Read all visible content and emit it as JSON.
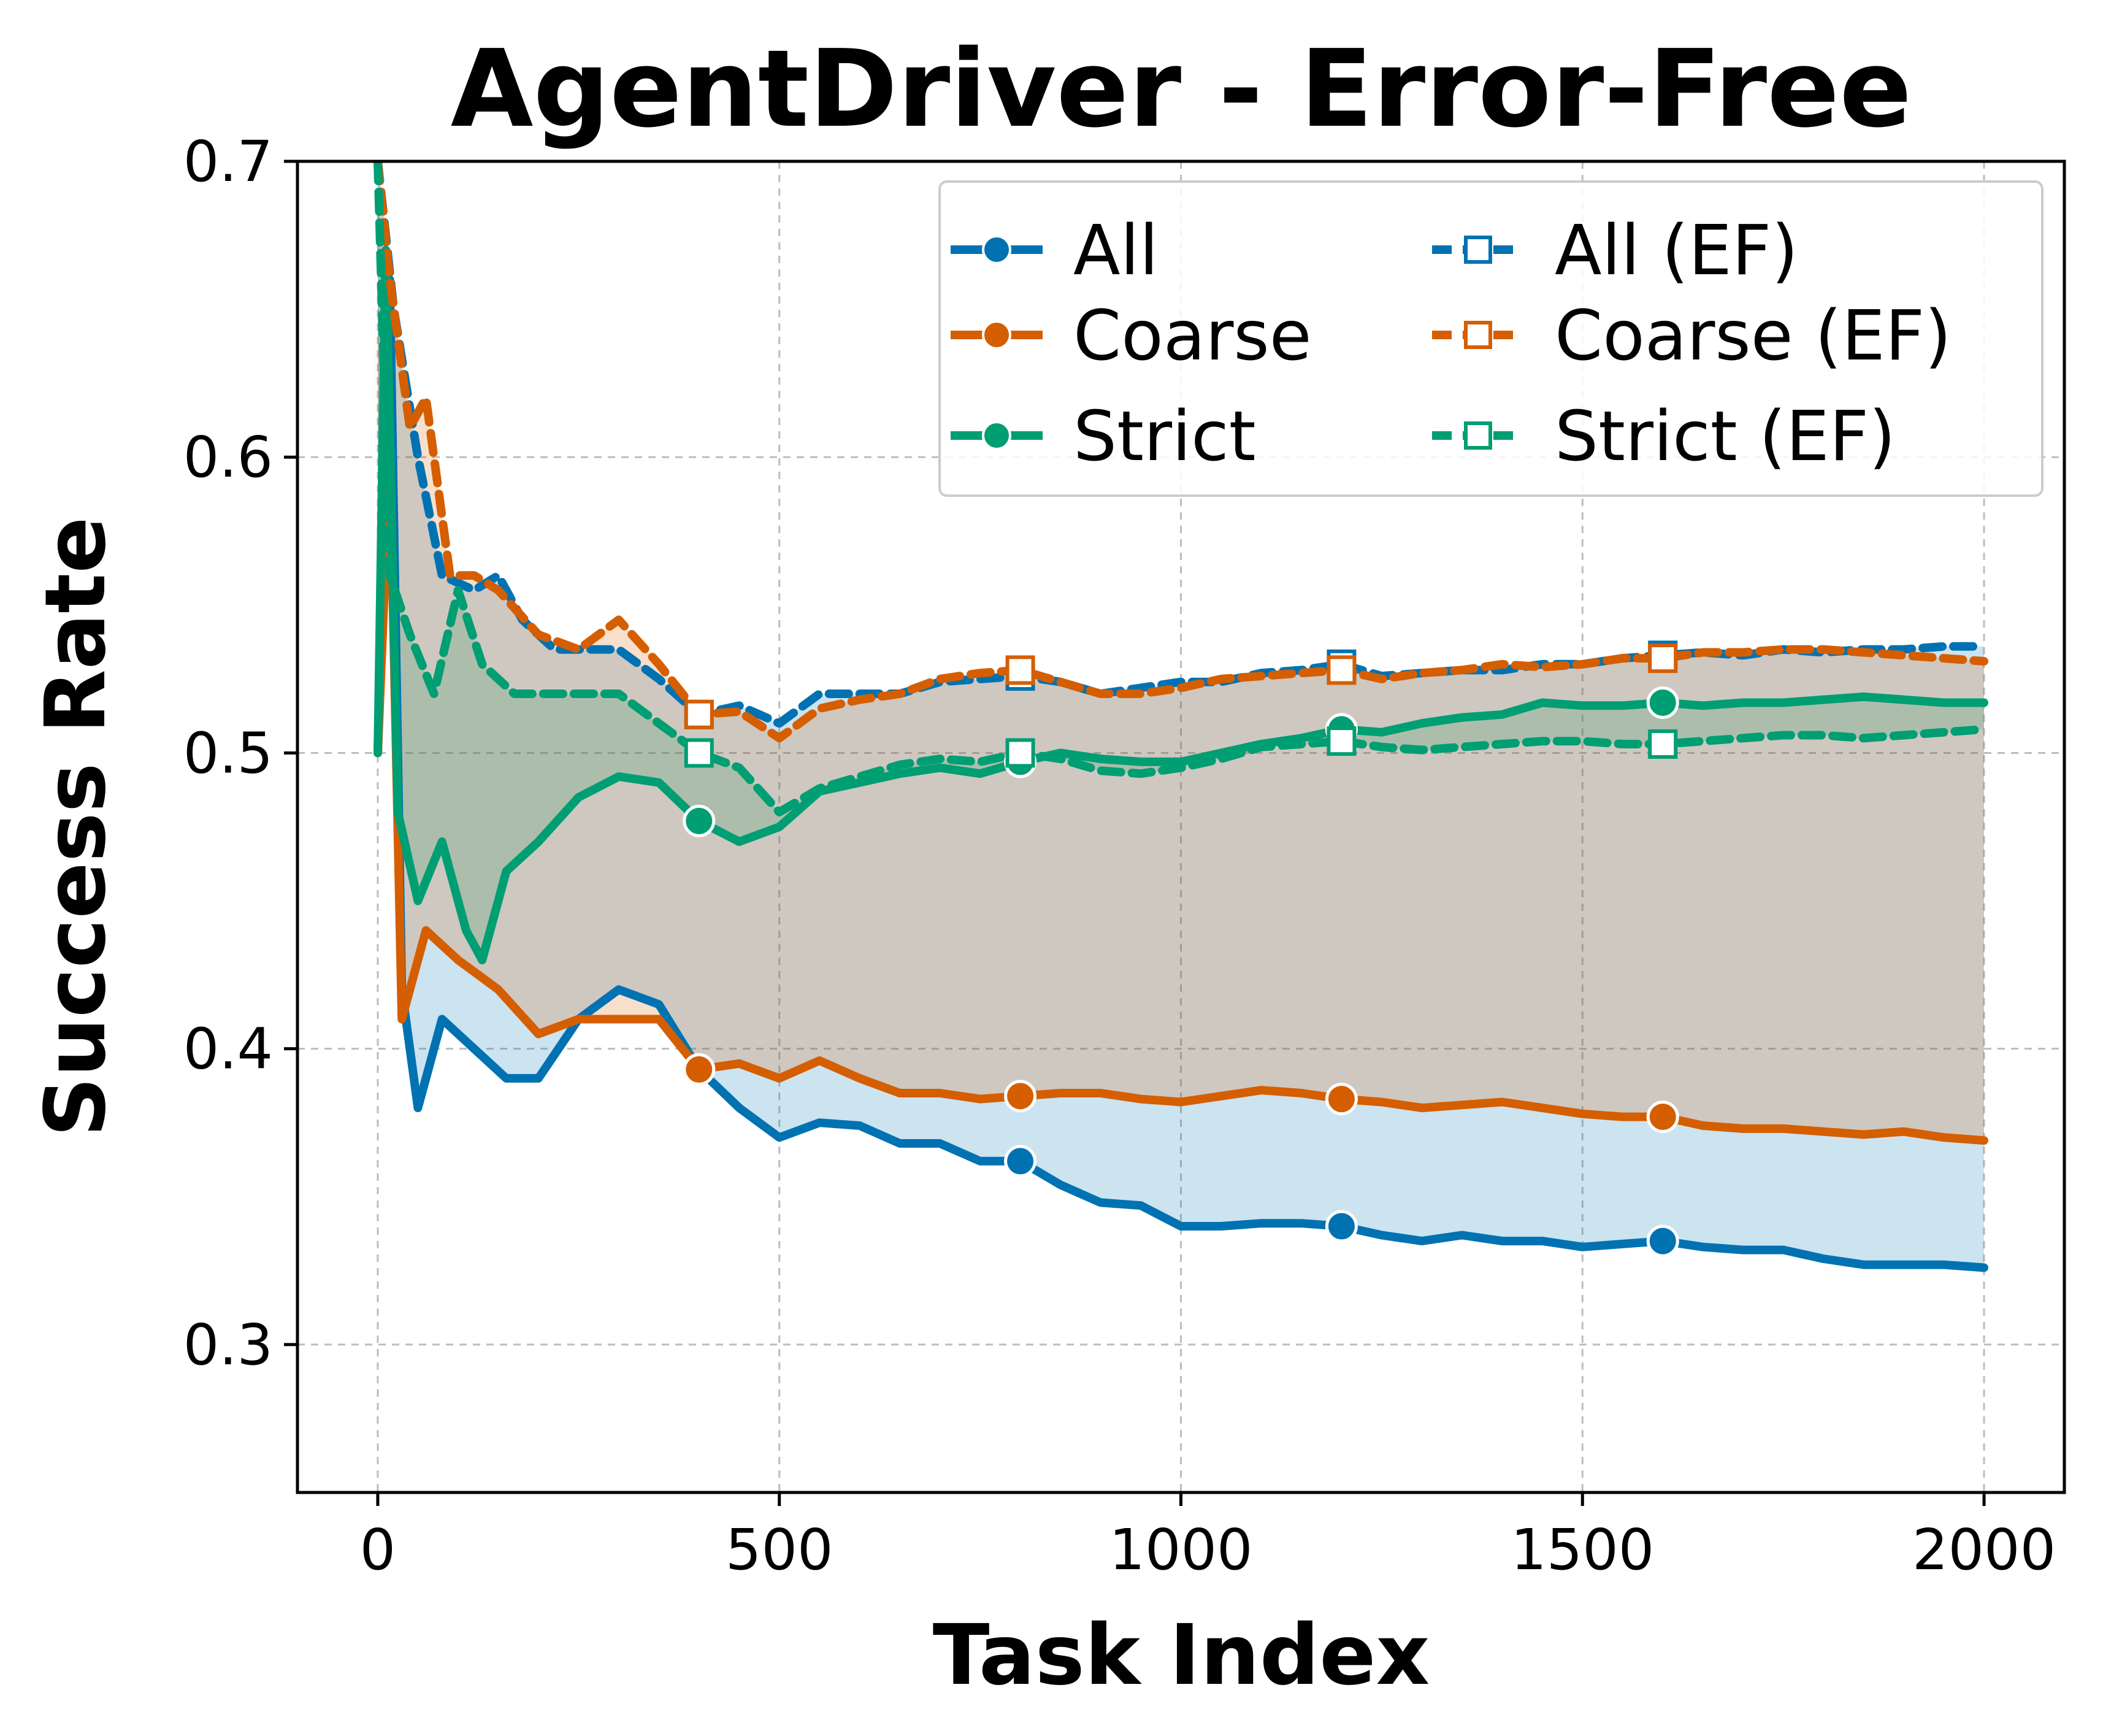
{
  "chart_data": {
    "type": "line",
    "title": "AgentDriver - Error-Free",
    "xlabel": "Task Index",
    "ylabel": "Success Rate",
    "xlim": [
      -100,
      2100
    ],
    "ylim": [
      0.25,
      0.7
    ],
    "xticks": [
      0,
      500,
      1000,
      1500,
      2000
    ],
    "yticks": [
      0.3,
      0.4,
      0.5,
      0.6,
      0.7
    ],
    "xtick_labels": [
      "0",
      "500",
      "1000",
      "1500",
      "2000"
    ],
    "ytick_labels": [
      "0.3",
      "0.4",
      "0.5",
      "0.6",
      "0.7"
    ],
    "grid": true,
    "legend": {
      "placement": "top-right",
      "columns": 2
    },
    "colors": {
      "All": "#0072b2",
      "Coarse": "#d55e00",
      "Strict": "#009e73"
    },
    "series": [
      {
        "name": "All",
        "group": "All",
        "style": "solid",
        "marker": "circle",
        "points": [
          [
            0,
            0.5
          ],
          [
            15,
            0.66
          ],
          [
            30,
            0.42
          ],
          [
            50,
            0.38
          ],
          [
            80,
            0.41
          ],
          [
            120,
            0.4
          ],
          [
            160,
            0.39
          ],
          [
            200,
            0.39
          ],
          [
            250,
            0.41
          ],
          [
            300,
            0.42
          ],
          [
            350,
            0.415
          ],
          [
            400,
            0.393
          ],
          [
            450,
            0.38
          ],
          [
            500,
            0.37
          ],
          [
            550,
            0.375
          ],
          [
            600,
            0.374
          ],
          [
            650,
            0.368
          ],
          [
            700,
            0.368
          ],
          [
            750,
            0.362
          ],
          [
            800,
            0.362
          ],
          [
            850,
            0.354
          ],
          [
            900,
            0.348
          ],
          [
            950,
            0.347
          ],
          [
            1000,
            0.34
          ],
          [
            1050,
            0.34
          ],
          [
            1100,
            0.341
          ],
          [
            1150,
            0.341
          ],
          [
            1200,
            0.34
          ],
          [
            1250,
            0.337
          ],
          [
            1300,
            0.335
          ],
          [
            1350,
            0.337
          ],
          [
            1400,
            0.335
          ],
          [
            1450,
            0.335
          ],
          [
            1500,
            0.333
          ],
          [
            1550,
            0.334
          ],
          [
            1600,
            0.335
          ],
          [
            1650,
            0.333
          ],
          [
            1700,
            0.332
          ],
          [
            1750,
            0.332
          ],
          [
            1800,
            0.329
          ],
          [
            1850,
            0.327
          ],
          [
            1900,
            0.327
          ],
          [
            1950,
            0.327
          ],
          [
            2000,
            0.326
          ]
        ]
      },
      {
        "name": "Coarse",
        "group": "Coarse",
        "style": "solid",
        "marker": "circle",
        "points": [
          [
            0,
            0.5
          ],
          [
            15,
            0.6
          ],
          [
            30,
            0.41
          ],
          [
            60,
            0.44
          ],
          [
            100,
            0.43
          ],
          [
            150,
            0.42
          ],
          [
            200,
            0.405
          ],
          [
            250,
            0.41
          ],
          [
            300,
            0.41
          ],
          [
            350,
            0.41
          ],
          [
            400,
            0.393
          ],
          [
            450,
            0.395
          ],
          [
            500,
            0.39
          ],
          [
            550,
            0.396
          ],
          [
            600,
            0.39
          ],
          [
            650,
            0.385
          ],
          [
            700,
            0.385
          ],
          [
            750,
            0.383
          ],
          [
            800,
            0.384
          ],
          [
            850,
            0.385
          ],
          [
            900,
            0.385
          ],
          [
            950,
            0.383
          ],
          [
            1000,
            0.382
          ],
          [
            1050,
            0.384
          ],
          [
            1100,
            0.386
          ],
          [
            1150,
            0.385
          ],
          [
            1200,
            0.383
          ],
          [
            1250,
            0.382
          ],
          [
            1300,
            0.38
          ],
          [
            1350,
            0.381
          ],
          [
            1400,
            0.382
          ],
          [
            1450,
            0.38
          ],
          [
            1500,
            0.378
          ],
          [
            1550,
            0.377
          ],
          [
            1600,
            0.377
          ],
          [
            1650,
            0.374
          ],
          [
            1700,
            0.373
          ],
          [
            1750,
            0.373
          ],
          [
            1800,
            0.372
          ],
          [
            1850,
            0.371
          ],
          [
            1900,
            0.372
          ],
          [
            1950,
            0.37
          ],
          [
            2000,
            0.369
          ]
        ]
      },
      {
        "name": "Strict",
        "group": "Strict",
        "style": "solid",
        "marker": "circle",
        "points": [
          [
            0,
            0.5
          ],
          [
            10,
            0.67
          ],
          [
            25,
            0.48
          ],
          [
            50,
            0.45
          ],
          [
            80,
            0.47
          ],
          [
            110,
            0.44
          ],
          [
            130,
            0.43
          ],
          [
            160,
            0.46
          ],
          [
            200,
            0.47
          ],
          [
            250,
            0.485
          ],
          [
            300,
            0.492
          ],
          [
            350,
            0.49
          ],
          [
            400,
            0.477
          ],
          [
            450,
            0.47
          ],
          [
            500,
            0.475
          ],
          [
            550,
            0.487
          ],
          [
            600,
            0.49
          ],
          [
            650,
            0.493
          ],
          [
            700,
            0.495
          ],
          [
            750,
            0.493
          ],
          [
            800,
            0.497
          ],
          [
            850,
            0.5
          ],
          [
            900,
            0.498
          ],
          [
            950,
            0.497
          ],
          [
            1000,
            0.497
          ],
          [
            1050,
            0.5
          ],
          [
            1100,
            0.503
          ],
          [
            1150,
            0.505
          ],
          [
            1200,
            0.508
          ],
          [
            1250,
            0.507
          ],
          [
            1300,
            0.51
          ],
          [
            1350,
            0.512
          ],
          [
            1400,
            0.513
          ],
          [
            1450,
            0.517
          ],
          [
            1500,
            0.516
          ],
          [
            1550,
            0.516
          ],
          [
            1600,
            0.517
          ],
          [
            1650,
            0.516
          ],
          [
            1700,
            0.517
          ],
          [
            1750,
            0.517
          ],
          [
            1800,
            0.518
          ],
          [
            1850,
            0.519
          ],
          [
            1900,
            0.518
          ],
          [
            1950,
            0.517
          ],
          [
            2000,
            0.517
          ]
        ]
      },
      {
        "name": "All (EF)",
        "group": "All",
        "style": "dashed",
        "marker": "square",
        "points": [
          [
            0,
            0.7
          ],
          [
            20,
            0.65
          ],
          [
            50,
            0.6
          ],
          [
            80,
            0.56
          ],
          [
            120,
            0.555
          ],
          [
            150,
            0.56
          ],
          [
            180,
            0.545
          ],
          [
            220,
            0.535
          ],
          [
            260,
            0.535
          ],
          [
            300,
            0.535
          ],
          [
            350,
            0.525
          ],
          [
            400,
            0.513
          ],
          [
            450,
            0.516
          ],
          [
            500,
            0.51
          ],
          [
            550,
            0.52
          ],
          [
            600,
            0.52
          ],
          [
            650,
            0.52
          ],
          [
            700,
            0.524
          ],
          [
            750,
            0.525
          ],
          [
            800,
            0.526
          ],
          [
            850,
            0.524
          ],
          [
            900,
            0.52
          ],
          [
            950,
            0.522
          ],
          [
            1000,
            0.524
          ],
          [
            1050,
            0.524
          ],
          [
            1100,
            0.527
          ],
          [
            1150,
            0.528
          ],
          [
            1200,
            0.53
          ],
          [
            1250,
            0.526
          ],
          [
            1300,
            0.527
          ],
          [
            1350,
            0.528
          ],
          [
            1400,
            0.528
          ],
          [
            1450,
            0.53
          ],
          [
            1500,
            0.53
          ],
          [
            1550,
            0.532
          ],
          [
            1600,
            0.533
          ],
          [
            1650,
            0.534
          ],
          [
            1700,
            0.533
          ],
          [
            1750,
            0.535
          ],
          [
            1800,
            0.534
          ],
          [
            1850,
            0.535
          ],
          [
            1900,
            0.535
          ],
          [
            1950,
            0.536
          ],
          [
            2000,
            0.536
          ]
        ]
      },
      {
        "name": "Coarse (EF)",
        "group": "Coarse",
        "style": "dashed",
        "marker": "square",
        "points": [
          [
            0,
            0.7
          ],
          [
            15,
            0.66
          ],
          [
            40,
            0.61
          ],
          [
            60,
            0.62
          ],
          [
            90,
            0.56
          ],
          [
            120,
            0.56
          ],
          [
            150,
            0.555
          ],
          [
            200,
            0.54
          ],
          [
            250,
            0.535
          ],
          [
            300,
            0.545
          ],
          [
            350,
            0.53
          ],
          [
            400,
            0.513
          ],
          [
            450,
            0.514
          ],
          [
            500,
            0.505
          ],
          [
            550,
            0.515
          ],
          [
            600,
            0.518
          ],
          [
            650,
            0.52
          ],
          [
            700,
            0.525
          ],
          [
            750,
            0.527
          ],
          [
            800,
            0.528
          ],
          [
            850,
            0.524
          ],
          [
            900,
            0.52
          ],
          [
            950,
            0.52
          ],
          [
            1000,
            0.522
          ],
          [
            1050,
            0.525
          ],
          [
            1100,
            0.526
          ],
          [
            1150,
            0.527
          ],
          [
            1200,
            0.528
          ],
          [
            1250,
            0.525
          ],
          [
            1300,
            0.527
          ],
          [
            1350,
            0.528
          ],
          [
            1400,
            0.53
          ],
          [
            1450,
            0.529
          ],
          [
            1500,
            0.53
          ],
          [
            1550,
            0.532
          ],
          [
            1600,
            0.532
          ],
          [
            1650,
            0.534
          ],
          [
            1700,
            0.534
          ],
          [
            1750,
            0.535
          ],
          [
            1800,
            0.535
          ],
          [
            1850,
            0.534
          ],
          [
            1900,
            0.533
          ],
          [
            1950,
            0.532
          ],
          [
            2000,
            0.531
          ]
        ]
      },
      {
        "name": "Strict (EF)",
        "group": "Strict",
        "style": "dashed",
        "marker": "square",
        "points": [
          [
            0,
            0.7
          ],
          [
            15,
            0.56
          ],
          [
            40,
            0.54
          ],
          [
            70,
            0.52
          ],
          [
            100,
            0.555
          ],
          [
            130,
            0.53
          ],
          [
            170,
            0.52
          ],
          [
            220,
            0.52
          ],
          [
            260,
            0.52
          ],
          [
            300,
            0.52
          ],
          [
            350,
            0.51
          ],
          [
            400,
            0.5
          ],
          [
            450,
            0.495
          ],
          [
            500,
            0.48
          ],
          [
            550,
            0.488
          ],
          [
            600,
            0.492
          ],
          [
            650,
            0.496
          ],
          [
            700,
            0.498
          ],
          [
            750,
            0.497
          ],
          [
            800,
            0.5
          ],
          [
            850,
            0.498
          ],
          [
            900,
            0.494
          ],
          [
            950,
            0.493
          ],
          [
            1000,
            0.495
          ],
          [
            1050,
            0.498
          ],
          [
            1100,
            0.502
          ],
          [
            1150,
            0.503
          ],
          [
            1200,
            0.504
          ],
          [
            1250,
            0.502
          ],
          [
            1300,
            0.501
          ],
          [
            1350,
            0.502
          ],
          [
            1400,
            0.503
          ],
          [
            1450,
            0.504
          ],
          [
            1500,
            0.504
          ],
          [
            1550,
            0.503
          ],
          [
            1600,
            0.503
          ],
          [
            1650,
            0.504
          ],
          [
            1700,
            0.505
          ],
          [
            1750,
            0.506
          ],
          [
            1800,
            0.506
          ],
          [
            1850,
            0.505
          ],
          [
            1900,
            0.506
          ],
          [
            1950,
            0.507
          ],
          [
            2000,
            0.508
          ]
        ]
      }
    ]
  }
}
